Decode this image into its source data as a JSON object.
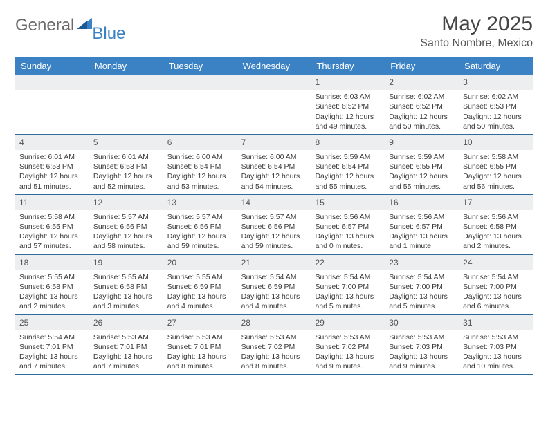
{
  "logo": {
    "text1": "General",
    "text2": "Blue"
  },
  "title": "May 2025",
  "subtitle": "Santo Nombre, Mexico",
  "colors": {
    "header_bg": "#3b82c4",
    "header_border": "#2f6aa0",
    "daybar_bg": "#eceef0",
    "text": "#3a3a3a",
    "title": "#454545"
  },
  "daysOfWeek": [
    "Sunday",
    "Monday",
    "Tuesday",
    "Wednesday",
    "Thursday",
    "Friday",
    "Saturday"
  ],
  "weeks": [
    [
      {
        "n": ""
      },
      {
        "n": ""
      },
      {
        "n": ""
      },
      {
        "n": ""
      },
      {
        "n": "1",
        "sr": "Sunrise: 6:03 AM",
        "ss": "Sunset: 6:52 PM",
        "d1": "Daylight: 12 hours",
        "d2": "and 49 minutes."
      },
      {
        "n": "2",
        "sr": "Sunrise: 6:02 AM",
        "ss": "Sunset: 6:52 PM",
        "d1": "Daylight: 12 hours",
        "d2": "and 50 minutes."
      },
      {
        "n": "3",
        "sr": "Sunrise: 6:02 AM",
        "ss": "Sunset: 6:53 PM",
        "d1": "Daylight: 12 hours",
        "d2": "and 50 minutes."
      }
    ],
    [
      {
        "n": "4",
        "sr": "Sunrise: 6:01 AM",
        "ss": "Sunset: 6:53 PM",
        "d1": "Daylight: 12 hours",
        "d2": "and 51 minutes."
      },
      {
        "n": "5",
        "sr": "Sunrise: 6:01 AM",
        "ss": "Sunset: 6:53 PM",
        "d1": "Daylight: 12 hours",
        "d2": "and 52 minutes."
      },
      {
        "n": "6",
        "sr": "Sunrise: 6:00 AM",
        "ss": "Sunset: 6:54 PM",
        "d1": "Daylight: 12 hours",
        "d2": "and 53 minutes."
      },
      {
        "n": "7",
        "sr": "Sunrise: 6:00 AM",
        "ss": "Sunset: 6:54 PM",
        "d1": "Daylight: 12 hours",
        "d2": "and 54 minutes."
      },
      {
        "n": "8",
        "sr": "Sunrise: 5:59 AM",
        "ss": "Sunset: 6:54 PM",
        "d1": "Daylight: 12 hours",
        "d2": "and 55 minutes."
      },
      {
        "n": "9",
        "sr": "Sunrise: 5:59 AM",
        "ss": "Sunset: 6:55 PM",
        "d1": "Daylight: 12 hours",
        "d2": "and 55 minutes."
      },
      {
        "n": "10",
        "sr": "Sunrise: 5:58 AM",
        "ss": "Sunset: 6:55 PM",
        "d1": "Daylight: 12 hours",
        "d2": "and 56 minutes."
      }
    ],
    [
      {
        "n": "11",
        "sr": "Sunrise: 5:58 AM",
        "ss": "Sunset: 6:55 PM",
        "d1": "Daylight: 12 hours",
        "d2": "and 57 minutes."
      },
      {
        "n": "12",
        "sr": "Sunrise: 5:57 AM",
        "ss": "Sunset: 6:56 PM",
        "d1": "Daylight: 12 hours",
        "d2": "and 58 minutes."
      },
      {
        "n": "13",
        "sr": "Sunrise: 5:57 AM",
        "ss": "Sunset: 6:56 PM",
        "d1": "Daylight: 12 hours",
        "d2": "and 59 minutes."
      },
      {
        "n": "14",
        "sr": "Sunrise: 5:57 AM",
        "ss": "Sunset: 6:56 PM",
        "d1": "Daylight: 12 hours",
        "d2": "and 59 minutes."
      },
      {
        "n": "15",
        "sr": "Sunrise: 5:56 AM",
        "ss": "Sunset: 6:57 PM",
        "d1": "Daylight: 13 hours",
        "d2": "and 0 minutes."
      },
      {
        "n": "16",
        "sr": "Sunrise: 5:56 AM",
        "ss": "Sunset: 6:57 PM",
        "d1": "Daylight: 13 hours",
        "d2": "and 1 minute."
      },
      {
        "n": "17",
        "sr": "Sunrise: 5:56 AM",
        "ss": "Sunset: 6:58 PM",
        "d1": "Daylight: 13 hours",
        "d2": "and 2 minutes."
      }
    ],
    [
      {
        "n": "18",
        "sr": "Sunrise: 5:55 AM",
        "ss": "Sunset: 6:58 PM",
        "d1": "Daylight: 13 hours",
        "d2": "and 2 minutes."
      },
      {
        "n": "19",
        "sr": "Sunrise: 5:55 AM",
        "ss": "Sunset: 6:58 PM",
        "d1": "Daylight: 13 hours",
        "d2": "and 3 minutes."
      },
      {
        "n": "20",
        "sr": "Sunrise: 5:55 AM",
        "ss": "Sunset: 6:59 PM",
        "d1": "Daylight: 13 hours",
        "d2": "and 4 minutes."
      },
      {
        "n": "21",
        "sr": "Sunrise: 5:54 AM",
        "ss": "Sunset: 6:59 PM",
        "d1": "Daylight: 13 hours",
        "d2": "and 4 minutes."
      },
      {
        "n": "22",
        "sr": "Sunrise: 5:54 AM",
        "ss": "Sunset: 7:00 PM",
        "d1": "Daylight: 13 hours",
        "d2": "and 5 minutes."
      },
      {
        "n": "23",
        "sr": "Sunrise: 5:54 AM",
        "ss": "Sunset: 7:00 PM",
        "d1": "Daylight: 13 hours",
        "d2": "and 5 minutes."
      },
      {
        "n": "24",
        "sr": "Sunrise: 5:54 AM",
        "ss": "Sunset: 7:00 PM",
        "d1": "Daylight: 13 hours",
        "d2": "and 6 minutes."
      }
    ],
    [
      {
        "n": "25",
        "sr": "Sunrise: 5:54 AM",
        "ss": "Sunset: 7:01 PM",
        "d1": "Daylight: 13 hours",
        "d2": "and 7 minutes."
      },
      {
        "n": "26",
        "sr": "Sunrise: 5:53 AM",
        "ss": "Sunset: 7:01 PM",
        "d1": "Daylight: 13 hours",
        "d2": "and 7 minutes."
      },
      {
        "n": "27",
        "sr": "Sunrise: 5:53 AM",
        "ss": "Sunset: 7:01 PM",
        "d1": "Daylight: 13 hours",
        "d2": "and 8 minutes."
      },
      {
        "n": "28",
        "sr": "Sunrise: 5:53 AM",
        "ss": "Sunset: 7:02 PM",
        "d1": "Daylight: 13 hours",
        "d2": "and 8 minutes."
      },
      {
        "n": "29",
        "sr": "Sunrise: 5:53 AM",
        "ss": "Sunset: 7:02 PM",
        "d1": "Daylight: 13 hours",
        "d2": "and 9 minutes."
      },
      {
        "n": "30",
        "sr": "Sunrise: 5:53 AM",
        "ss": "Sunset: 7:03 PM",
        "d1": "Daylight: 13 hours",
        "d2": "and 9 minutes."
      },
      {
        "n": "31",
        "sr": "Sunrise: 5:53 AM",
        "ss": "Sunset: 7:03 PM",
        "d1": "Daylight: 13 hours",
        "d2": "and 10 minutes."
      }
    ]
  ]
}
